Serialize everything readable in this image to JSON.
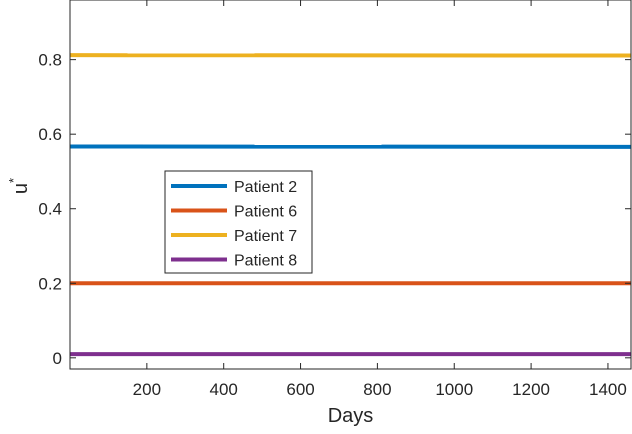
{
  "chart_data": {
    "type": "line",
    "title": "",
    "xlabel": "Days",
    "ylabel": "u",
    "ylabel_superscript": "*",
    "xlim": [
      0,
      1460
    ],
    "ylim": [
      -0.03,
      0.96
    ],
    "xticks": [
      200,
      400,
      600,
      800,
      1000,
      1200,
      1400
    ],
    "xtick_labels": [
      "200",
      "400",
      "600",
      "800",
      "1000",
      "1200",
      "1400"
    ],
    "yticks": [
      0,
      0.2,
      0.4,
      0.6,
      0.8
    ],
    "ytick_labels": [
      "0",
      "0.2",
      "0.4",
      "0.6",
      "0.8"
    ],
    "grid": false,
    "legend_position": "center-left",
    "x": [
      1,
      1460
    ],
    "series": [
      {
        "name": "Patient 2",
        "color": "#0072BD",
        "values": [
          0.567,
          0.566
        ]
      },
      {
        "name": "Patient 6",
        "color": "#D95319",
        "values": [
          0.2,
          0.2
        ]
      },
      {
        "name": "Patient 7",
        "color": "#EDB120",
        "values": [
          0.812,
          0.811
        ]
      },
      {
        "name": "Patient 8",
        "color": "#7E2F8E",
        "values": [
          0.01,
          0.01
        ]
      }
    ]
  }
}
